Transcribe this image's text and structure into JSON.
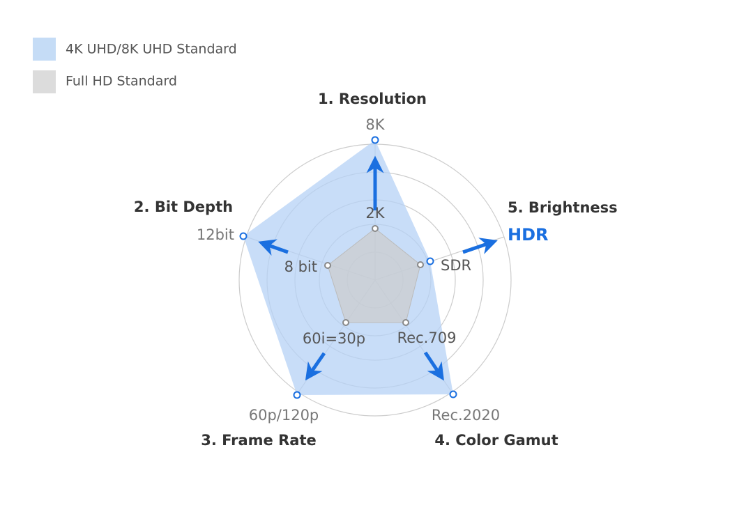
{
  "legend": [
    {
      "label": "4K UHD/8K UHD Standard"
    },
    {
      "label": "Full HD Standard"
    }
  ],
  "axes": [
    {
      "title": "1. Resolution",
      "uhd_label": "8K",
      "fhd_label": "2K"
    },
    {
      "title": "2. Bit Depth",
      "uhd_label": "12bit",
      "fhd_label": "8 bit"
    },
    {
      "title": "3. Frame Rate",
      "uhd_label": "60p/120p",
      "fhd_label": "60i=30p"
    },
    {
      "title": "4. Color Gamut",
      "uhd_label": "Rec.2020",
      "fhd_label": "Rec.709"
    },
    {
      "title": "5. Brightness",
      "uhd_label": "HDR",
      "fhd_label": "SDR"
    }
  ]
}
